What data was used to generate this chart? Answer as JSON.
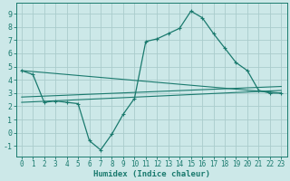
{
  "xlabel": "Humidex (Indice chaleur)",
  "bg_color": "#cce8e8",
  "grid_color": "#aacccc",
  "line_color": "#1a7a6e",
  "xlim": [
    -0.5,
    23.5
  ],
  "ylim": [
    -1.8,
    9.8
  ],
  "xticks": [
    0,
    1,
    2,
    3,
    4,
    5,
    6,
    7,
    8,
    9,
    10,
    11,
    12,
    13,
    14,
    15,
    16,
    17,
    18,
    19,
    20,
    21,
    22,
    23
  ],
  "yticks": [
    -1,
    0,
    1,
    2,
    3,
    4,
    5,
    6,
    7,
    8,
    9
  ],
  "curve_x": [
    0,
    1,
    2,
    3,
    4,
    5,
    6,
    7,
    8,
    9,
    10,
    11,
    12,
    13,
    14,
    15,
    16,
    17,
    18,
    19,
    20,
    21,
    22,
    23
  ],
  "curve_y": [
    4.7,
    4.4,
    2.3,
    2.4,
    2.3,
    2.2,
    -0.6,
    -1.3,
    -0.1,
    1.4,
    2.6,
    6.9,
    7.1,
    7.5,
    7.9,
    9.2,
    8.7,
    7.5,
    6.4,
    5.3,
    4.7,
    3.2,
    3.0,
    3.0
  ],
  "line1": {
    "x": [
      0,
      23
    ],
    "y": [
      4.7,
      3.0
    ]
  },
  "line2": {
    "x": [
      0,
      23
    ],
    "y": [
      2.3,
      3.2
    ]
  },
  "line3": {
    "x": [
      0,
      23
    ],
    "y": [
      2.7,
      3.5
    ]
  },
  "tick_fontsize": 5.5,
  "xlabel_fontsize": 6.5
}
